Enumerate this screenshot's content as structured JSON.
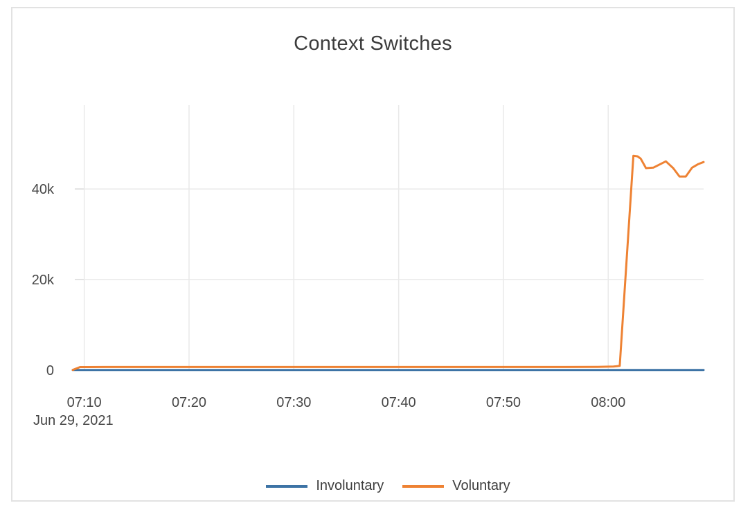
{
  "chart_data": {
    "type": "line",
    "title": "Context Switches",
    "x_date_label": "Jun 29, 2021",
    "x_unit": "time of day (minutes after 07:00)",
    "x_range_minutes": [
      8.9,
      69.1
    ],
    "x_tick_minutes": [
      10,
      20,
      30,
      40,
      50,
      60
    ],
    "x_tick_labels": [
      "07:10",
      "07:20",
      "07:30",
      "07:40",
      "07:50",
      "08:00"
    ],
    "y_tick_values": [
      0,
      20000,
      40000
    ],
    "y_tick_labels": [
      "0",
      "20k",
      "40k"
    ],
    "ylim": [
      0,
      58500
    ],
    "grid": true,
    "legend_position": "bottom",
    "series": [
      {
        "name": "Involuntary",
        "color": "#3d73a5",
        "points": [
          [
            8.9,
            30
          ],
          [
            15,
            30
          ],
          [
            20,
            30
          ],
          [
            25,
            30
          ],
          [
            30,
            30
          ],
          [
            35,
            30
          ],
          [
            40,
            30
          ],
          [
            45,
            30
          ],
          [
            50,
            30
          ],
          [
            55,
            30
          ],
          [
            60,
            30
          ],
          [
            65,
            35
          ],
          [
            69.1,
            40
          ]
        ]
      },
      {
        "name": "Voluntary",
        "color": "#ee8233",
        "points": [
          [
            8.9,
            50
          ],
          [
            9.6,
            680
          ],
          [
            12,
            700
          ],
          [
            16,
            700
          ],
          [
            20,
            700
          ],
          [
            24,
            700
          ],
          [
            28,
            700
          ],
          [
            32,
            700
          ],
          [
            36,
            700
          ],
          [
            40,
            700
          ],
          [
            44,
            700
          ],
          [
            48,
            700
          ],
          [
            52,
            700
          ],
          [
            56,
            700
          ],
          [
            59,
            720
          ],
          [
            60.5,
            800
          ],
          [
            61.1,
            950
          ],
          [
            62.4,
            47300
          ],
          [
            62.8,
            47200
          ],
          [
            63.1,
            46700
          ],
          [
            63.6,
            44600
          ],
          [
            64.3,
            44700
          ],
          [
            65.5,
            46100
          ],
          [
            66.2,
            44600
          ],
          [
            66.8,
            42750
          ],
          [
            67.4,
            42750
          ],
          [
            68.0,
            44700
          ],
          [
            68.6,
            45500
          ],
          [
            69.1,
            45950
          ]
        ]
      }
    ],
    "colors": {
      "grid_line": "#e9e9e9",
      "tick_mark": "#d9d9d9",
      "tick_text": "#474747",
      "title_text": "#3c3c3c",
      "panel_border": "#e2e2e2",
      "background": "#ffffff"
    }
  }
}
